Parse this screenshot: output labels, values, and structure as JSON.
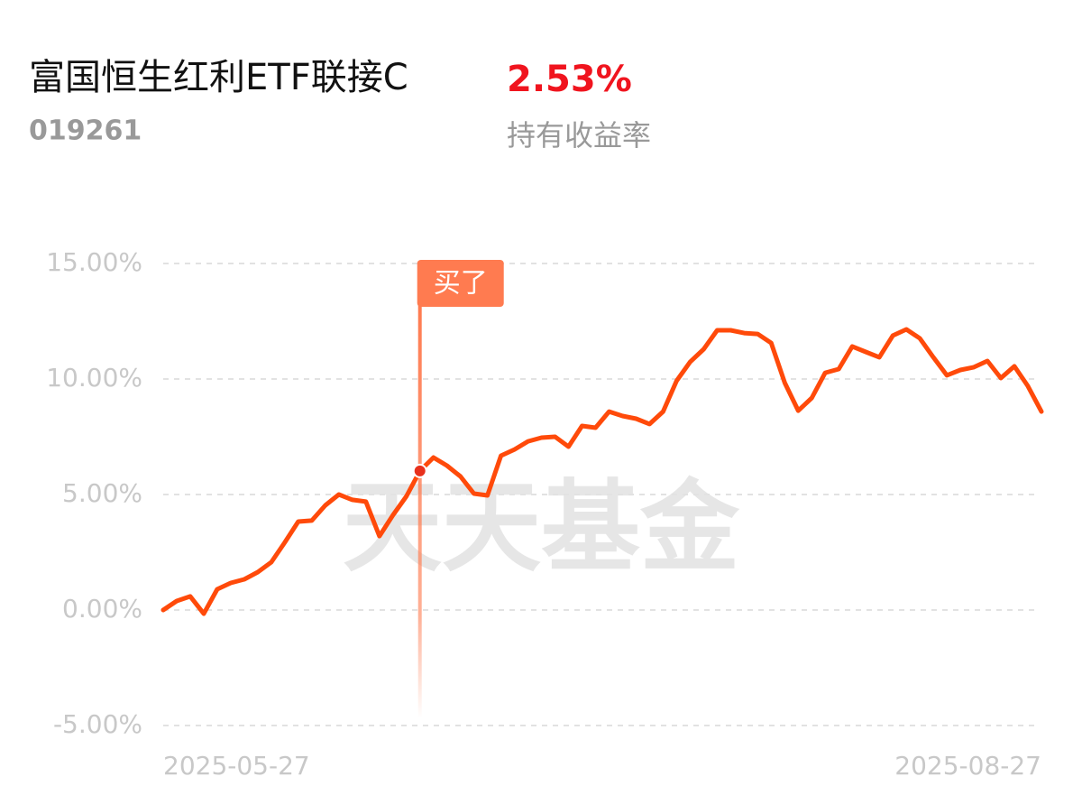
{
  "chart_data": {
    "type": "line",
    "title": "富国恒生红利ETF联接C",
    "code": "019261",
    "return_text": "2.53%",
    "return_label": "持有收益率",
    "watermark": "天天基金",
    "categories": [
      "2025-05-27",
      null,
      null,
      null,
      null,
      null,
      null,
      null,
      null,
      null,
      null,
      null,
      null,
      null,
      null,
      null,
      null,
      null,
      null,
      null,
      null,
      null,
      null,
      null,
      null,
      null,
      null,
      null,
      null,
      null,
      null,
      null,
      null,
      null,
      null,
      null,
      null,
      null,
      null,
      null,
      null,
      null,
      null,
      null,
      null,
      null,
      null,
      null,
      null,
      null,
      null,
      null,
      null,
      null,
      null,
      null,
      null,
      null,
      null,
      null,
      null,
      null,
      null,
      null,
      null,
      "2025-08-27"
    ],
    "series": [
      {
        "name": "持有收益率",
        "color": "#ff4a0a",
        "values": [
          0,
          0.39,
          0.59,
          -0.16,
          0.9,
          1.17,
          1.33,
          1.64,
          2.07,
          2.93,
          3.83,
          3.87,
          4.53,
          5.0,
          4.77,
          4.69,
          3.2,
          4.1,
          4.92,
          6.02,
          6.6,
          6.25,
          5.78,
          5.04,
          4.96,
          6.68,
          6.95,
          7.3,
          7.46,
          7.5,
          7.07,
          7.97,
          7.89,
          8.59,
          8.4,
          8.28,
          8.05,
          8.59,
          9.92,
          10.74,
          11.29,
          12.11,
          12.11,
          11.99,
          11.95,
          11.56,
          9.84,
          8.63,
          9.18,
          10.27,
          10.43,
          11.41,
          11.17,
          10.94,
          11.88,
          12.15,
          11.76,
          10.94,
          10.16,
          10.39,
          10.51,
          10.78,
          10.04,
          10.55,
          9.69,
          8.59
        ]
      }
    ],
    "annotations": [
      {
        "text": "买了",
        "x_index": 19,
        "color": "#ff7b50"
      }
    ],
    "ylim": [
      -5,
      15
    ],
    "yticks": [
      {
        "value": -5,
        "label": "-5.00%"
      },
      {
        "value": 0,
        "label": "0.00%"
      },
      {
        "value": 5,
        "label": "5.00%"
      },
      {
        "value": 10,
        "label": "10.00%"
      },
      {
        "value": 15,
        "label": "15.00%"
      }
    ],
    "grid": true
  }
}
